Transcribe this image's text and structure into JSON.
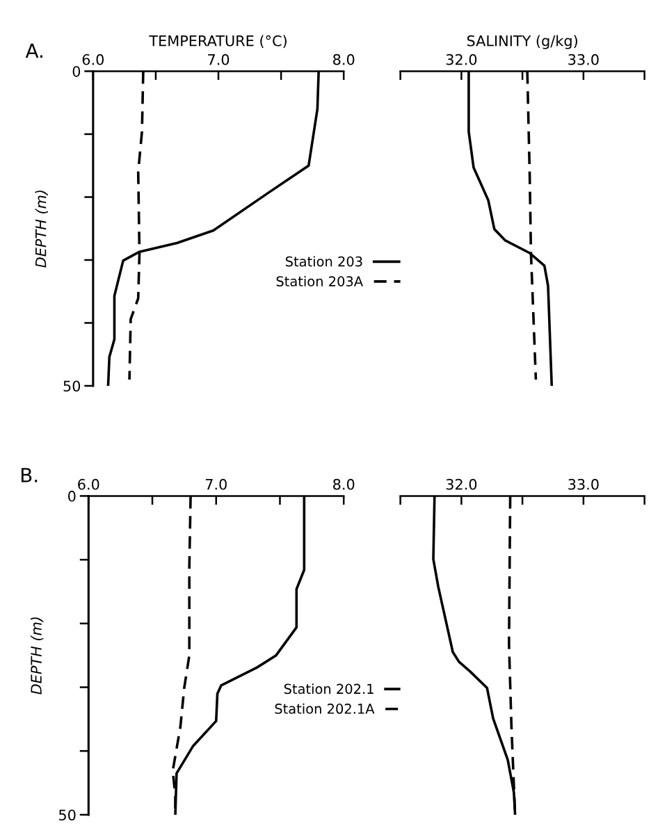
{
  "chart_data": [
    {
      "type": "line",
      "title": "A.",
      "xlabel": "TEMPERATURE (°C)",
      "ylabel": "DEPTH (m)",
      "xlim": [
        6.0,
        8.0
      ],
      "xticks": [
        {
          "value": 6.0,
          "label": "6.0"
        },
        {
          "value": 6.5,
          "label": null
        },
        {
          "value": 7.0,
          "label": "7.0"
        },
        {
          "value": 7.5,
          "label": null
        },
        {
          "value": 8.0,
          "label": "8.0"
        }
      ],
      "ylim": [
        50,
        0
      ],
      "yticks": [
        0,
        {
          "value": 10,
          "label": null
        },
        {
          "value": 20,
          "label": null
        },
        {
          "value": 30,
          "label": null
        },
        {
          "value": 40,
          "label": null
        },
        50
      ],
      "legend": "right",
      "grid": false,
      "series": [
        {
          "name": "Station 203",
          "color": "#000000",
          "line_style": "solid",
          "x": [
            7.8,
            7.79,
            7.72,
            7.4,
            6.96,
            6.67,
            6.37,
            6.24,
            6.17,
            6.17,
            6.13,
            6.12
          ],
          "values": [
            0,
            6,
            15,
            19.3,
            25.3,
            27.3,
            28.7,
            30.1,
            35.7,
            42.6,
            45.4,
            50
          ]
        },
        {
          "name": "Station 203A",
          "color": "#000000",
          "line_style": "dashed",
          "x": [
            6.4,
            6.39,
            6.36,
            6.37,
            6.36,
            6.3,
            6.29
          ],
          "values": [
            0,
            9.6,
            16,
            28.9,
            36.1,
            39.4,
            49
          ]
        }
      ]
    },
    {
      "type": "line",
      "xlabel": "SALINITY (g/kg)",
      "xlim": [
        31.5,
        33.5
      ],
      "xticks": [
        {
          "value": 31.5,
          "label": null
        },
        {
          "value": 32.0,
          "label": "32.0"
        },
        {
          "value": 32.5,
          "label": null
        },
        {
          "value": 33.0,
          "label": "33.0"
        },
        {
          "value": 33.5,
          "label": null
        }
      ],
      "ylim": [
        50,
        0
      ],
      "tick_labels": "x",
      "grid": false,
      "series": [
        {
          "color": "#000000",
          "line_style": "solid",
          "x": [
            32.06,
            32.06,
            32.1,
            32.22,
            32.27,
            32.36,
            32.56,
            32.68,
            32.71,
            32.74
          ],
          "values": [
            0,
            9.6,
            15.3,
            20.5,
            25.1,
            26.9,
            28.9,
            30.9,
            34.1,
            50
          ]
        },
        {
          "color": "#000000",
          "line_style": "dashed",
          "x": [
            32.54,
            32.56,
            32.57,
            32.61
          ],
          "values": [
            0,
            16.9,
            28.9,
            49
          ]
        }
      ]
    },
    {
      "type": "line",
      "title": "B.",
      "ylabel": "DEPTH (m)",
      "xlim": [
        6.0,
        8.0
      ],
      "xticks": [
        {
          "value": 6.0,
          "label": "6.0"
        },
        {
          "value": 6.5,
          "label": null
        },
        {
          "value": 7.0,
          "label": "7.0"
        },
        {
          "value": 7.5,
          "label": null
        },
        {
          "value": 8.0,
          "label": "8.0"
        }
      ],
      "ylim": [
        50,
        0
      ],
      "yticks": [
        0,
        {
          "value": 10,
          "label": null
        },
        {
          "value": 20,
          "label": null
        },
        {
          "value": 30,
          "label": null
        },
        {
          "value": 40,
          "label": null
        },
        50
      ],
      "legend": "right",
      "grid": false,
      "series": [
        {
          "name": "Station 202.1",
          "color": "#000000",
          "line_style": "solid",
          "x": [
            7.69,
            7.69,
            7.63,
            7.63,
            7.47,
            7.32,
            7.04,
            7.01,
            7.0,
            6.82,
            6.69,
            6.68
          ],
          "values": [
            0,
            11.6,
            14.6,
            20.6,
            25,
            26.9,
            29.7,
            31,
            35.3,
            39.2,
            43.5,
            50
          ]
        },
        {
          "name": "Station 202.1A",
          "color": "#000000",
          "line_style": "dashed",
          "x": [
            6.8,
            6.79,
            6.79,
            6.75,
            6.72,
            6.66,
            6.68,
            6.68
          ],
          "values": [
            0,
            11.1,
            25,
            30.1,
            36.2,
            43.1,
            47,
            50
          ]
        }
      ]
    },
    {
      "type": "line",
      "xlim": [
        31.5,
        33.5
      ],
      "xticks": [
        {
          "value": 31.5,
          "label": null
        },
        {
          "value": 32.0,
          "label": "32.0"
        },
        {
          "value": 32.5,
          "label": null
        },
        {
          "value": 33.0,
          "label": "33.0"
        },
        {
          "value": 33.5,
          "label": null
        }
      ],
      "ylim": [
        50,
        0
      ],
      "tick_labels": "x",
      "grid": false,
      "series": [
        {
          "color": "#000000",
          "line_style": "solid",
          "x": [
            31.78,
            31.77,
            31.81,
            31.93,
            31.98,
            32.07,
            32.21,
            32.26,
            32.38,
            32.43,
            32.44
          ],
          "values": [
            0,
            9.9,
            14.2,
            24.5,
            26,
            27.5,
            30.1,
            34.9,
            41.4,
            46.5,
            50
          ]
        },
        {
          "color": "#000000",
          "line_style": "dashed",
          "x": [
            32.4,
            32.39,
            32.41,
            32.44
          ],
          "values": [
            0,
            23.2,
            36.2,
            50
          ]
        }
      ]
    }
  ]
}
